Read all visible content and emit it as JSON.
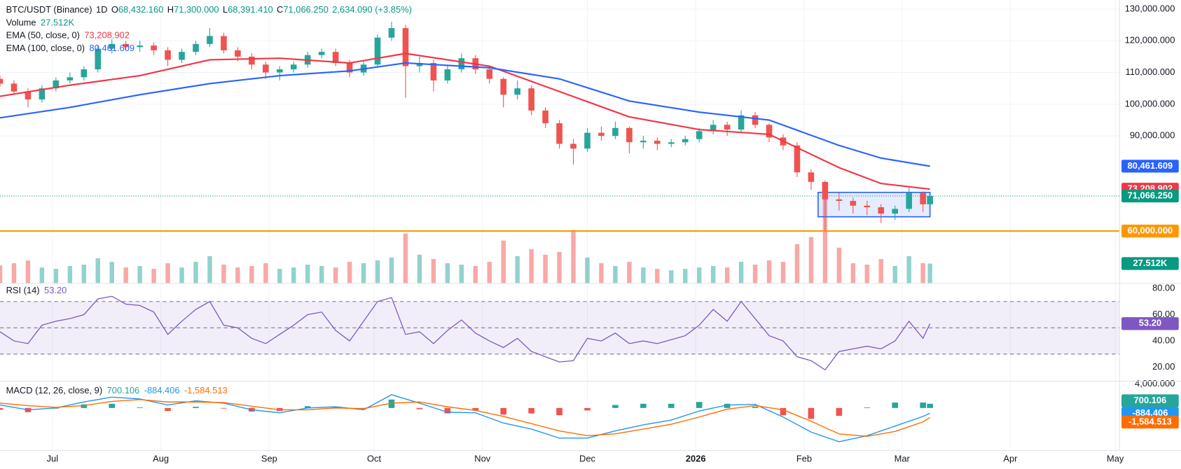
{
  "chart_data": [
    {
      "type": "candlestick",
      "title": "BTC/USDT (Binance)",
      "timeframe": "1D",
      "ohlc_legend": [
        {
          "label": "O",
          "value": "68,432.160"
        },
        {
          "label": "H",
          "value": "71,300.000"
        },
        {
          "label": "L",
          "value": "68,391.410"
        },
        {
          "label": "C",
          "value": "71,066.250"
        }
      ],
      "change": "2,634.090 (+3.85%)",
      "up_color": "#26a69a",
      "down_color": "#ef5350",
      "xlim": [
        0,
        337.8
      ],
      "xticks": [
        {
          "value": 15,
          "label": "Jul"
        },
        {
          "value": 46,
          "label": "Aug"
        },
        {
          "value": 77,
          "label": "Sep"
        },
        {
          "value": 107,
          "label": "Oct"
        },
        {
          "value": 138,
          "label": "Nov"
        },
        {
          "value": 168,
          "label": "Dec"
        },
        {
          "value": 199,
          "label": "2026"
        },
        {
          "value": 230,
          "label": "Feb"
        },
        {
          "value": 258,
          "label": "Mar"
        },
        {
          "value": 289,
          "label": "Apr"
        },
        {
          "value": 319,
          "label": "May"
        }
      ],
      "ylim": [
        43600,
        132850
      ],
      "yticks": [
        {
          "value": 90000,
          "label": "90,000.000"
        },
        {
          "value": 100000,
          "label": "100,000.000"
        },
        {
          "value": 110000,
          "label": "110,000.000"
        },
        {
          "value": 120000,
          "label": "120,000.000"
        },
        {
          "value": 130000,
          "label": "130,000.000"
        }
      ],
      "grid": true,
      "x": [
        0,
        4,
        8,
        12,
        16,
        20,
        24,
        28,
        32,
        36,
        40,
        44,
        48,
        52,
        56,
        60,
        64,
        68,
        72,
        76,
        80,
        84,
        88,
        92,
        96,
        100,
        104,
        108,
        112,
        116,
        120,
        124,
        128,
        132,
        136,
        140,
        144,
        148,
        152,
        156,
        160,
        164,
        168,
        172,
        176,
        180,
        184,
        188,
        192,
        196,
        200,
        204,
        208,
        212,
        216,
        220,
        224,
        228,
        232,
        236,
        240,
        244,
        248,
        252,
        256,
        260,
        264,
        266
      ],
      "open": [
        108000,
        106500,
        104000,
        101500,
        105000,
        107500,
        108500,
        111000,
        117500,
        119000,
        118000,
        118500,
        117000,
        114000,
        116500,
        119000,
        121500,
        117000,
        115000,
        112500,
        110000,
        111000,
        112500,
        115500,
        116500,
        113000,
        110000,
        112500,
        121000,
        124000,
        112000,
        113000,
        107500,
        111000,
        114500,
        111000,
        108000,
        103000,
        105000,
        98000,
        94000,
        87500,
        86000,
        91000,
        90000,
        92500,
        88000,
        88500,
        87500,
        88000,
        89000,
        91500,
        93500,
        92000,
        96500,
        93500,
        89500,
        87000,
        78500,
        75500,
        70000,
        69500,
        68000,
        67500,
        65500,
        67000,
        72000,
        68432.16
      ],
      "high": [
        109000,
        107500,
        105000,
        106000,
        108500,
        110000,
        112000,
        118500,
        120500,
        120000,
        120000,
        119500,
        118000,
        117500,
        120000,
        124000,
        122500,
        118000,
        116000,
        113500,
        112000,
        113500,
        116500,
        117500,
        117500,
        114000,
        113500,
        122000,
        126000,
        125000,
        115000,
        114000,
        112500,
        116000,
        115500,
        112000,
        108500,
        107500,
        106000,
        99000,
        95000,
        89000,
        92500,
        93000,
        94500,
        93000,
        90000,
        89500,
        89000,
        90000,
        92500,
        95000,
        94500,
        98000,
        97500,
        94000,
        90500,
        88000,
        79500,
        76000,
        72000,
        70500,
        69500,
        68500,
        68000,
        74000,
        72500,
        71300
      ],
      "low": [
        105500,
        103000,
        99000,
        100500,
        104000,
        106500,
        107500,
        110000,
        116000,
        117000,
        116500,
        115500,
        112000,
        113000,
        115500,
        118000,
        116000,
        113500,
        111000,
        108000,
        107500,
        110000,
        111500,
        114500,
        112000,
        108500,
        109000,
        111500,
        120000,
        102000,
        110000,
        104000,
        106500,
        110000,
        109500,
        106500,
        99000,
        101500,
        96500,
        92500,
        86000,
        81000,
        85000,
        88500,
        89000,
        84500,
        86000,
        85500,
        86500,
        87000,
        88000,
        90500,
        90000,
        91000,
        92500,
        88000,
        85500,
        77000,
        73000,
        60000,
        66500,
        65500,
        65000,
        62500,
        63500,
        66000,
        66000,
        68391.41
      ],
      "close": [
        106500,
        104000,
        101500,
        105000,
        107500,
        108500,
        111000,
        117500,
        119000,
        118000,
        118500,
        117000,
        114000,
        116500,
        119000,
        121500,
        117000,
        115000,
        112500,
        110000,
        111000,
        112500,
        115500,
        116500,
        113000,
        110000,
        112500,
        121000,
        124000,
        112000,
        113000,
        107500,
        111000,
        114500,
        111000,
        108000,
        103000,
        105000,
        98000,
        94000,
        87500,
        86000,
        91000,
        90000,
        92500,
        88000,
        88500,
        87500,
        88000,
        89000,
        91500,
        93500,
        92000,
        96500,
        93500,
        89500,
        87000,
        78500,
        75500,
        70000,
        69500,
        68000,
        67500,
        65500,
        67000,
        72000,
        68432.16,
        71066.25
      ],
      "volume": {
        "name": "Volume",
        "ylim": [
          0,
          400
        ],
        "values": [
          25,
          28,
          32,
          22,
          20,
          24,
          26,
          35,
          30,
          22,
          24,
          20,
          28,
          22,
          30,
          38,
          26,
          22,
          24,
          28,
          20,
          22,
          26,
          24,
          22,
          30,
          28,
          32,
          36,
          70,
          40,
          34,
          28,
          26,
          24,
          30,
          60,
          38,
          48,
          40,
          44,
          75,
          36,
          28,
          24,
          30,
          22,
          20,
          18,
          20,
          22,
          24,
          22,
          30,
          26,
          32,
          30,
          55,
          65,
          130,
          50,
          28,
          26,
          34,
          24,
          38,
          28,
          27.512
        ],
        "tag": {
          "value": 27.512,
          "label": "27.512K"
        },
        "color": "#26a69a"
      },
      "ema": [
        {
          "name": "EMA (50, close, 0)",
          "color": "#f23645",
          "x": [
            0,
            20,
            40,
            60,
            80,
            100,
            116,
            140,
            160,
            180,
            200,
            220,
            240,
            252,
            266
          ],
          "values": [
            102500,
            106000,
            109000,
            114000,
            114500,
            113000,
            116000,
            112000,
            104000,
            96000,
            92000,
            90500,
            80000,
            75000,
            73208.902
          ],
          "tag": {
            "value": 73208.902,
            "label": "73,208.902"
          }
        },
        {
          "name": "EMA (100, close, 0)",
          "color": "#2962ff",
          "x": [
            0,
            20,
            40,
            60,
            80,
            100,
            116,
            140,
            160,
            180,
            200,
            220,
            240,
            252,
            266
          ],
          "values": [
            95700,
            99000,
            103000,
            106500,
            109000,
            110500,
            113000,
            111500,
            108000,
            101000,
            97500,
            95000,
            87000,
            83000,
            80461.609
          ],
          "tag": {
            "value": 80461.609,
            "label": "80,461.609"
          }
        }
      ],
      "last_price": {
        "value": 71066.25,
        "label": "71,066.250",
        "color": "#089981"
      },
      "hline": {
        "value": 60000,
        "label": "60,000.000",
        "color": "#ff9800"
      },
      "range_box": {
        "x": [
          234,
          266
        ],
        "y": [
          64500,
          72200
        ],
        "color": "#2962ff"
      }
    },
    {
      "type": "line",
      "title": "RSI (14)",
      "color": "#7e57c2",
      "x": [
        0,
        4,
        8,
        12,
        16,
        20,
        24,
        28,
        32,
        36,
        40,
        44,
        48,
        52,
        56,
        60,
        64,
        68,
        72,
        76,
        80,
        84,
        88,
        92,
        96,
        100,
        104,
        108,
        112,
        116,
        120,
        124,
        128,
        132,
        136,
        140,
        144,
        148,
        152,
        156,
        160,
        164,
        168,
        172,
        176,
        180,
        184,
        188,
        192,
        196,
        200,
        204,
        208,
        212,
        216,
        220,
        224,
        228,
        232,
        236,
        240,
        244,
        248,
        252,
        256,
        260,
        264,
        266
      ],
      "values": [
        47,
        40,
        38,
        52,
        55,
        57,
        60,
        72,
        74,
        68,
        67,
        62,
        45,
        55,
        64,
        70,
        52,
        50,
        42,
        38,
        45,
        52,
        60,
        62,
        48,
        40,
        55,
        70,
        73,
        45,
        47,
        38,
        48,
        56,
        46,
        40,
        35,
        42,
        32,
        28,
        24,
        25,
        42,
        40,
        46,
        38,
        40,
        38,
        41,
        44,
        52,
        64,
        55,
        70,
        57,
        44,
        40,
        28,
        25,
        18,
        32,
        34,
        36,
        34,
        40,
        55,
        42,
        53.2
      ],
      "tag": {
        "value": 53.2,
        "label": "53.20"
      },
      "ylim": [
        9.6,
        83.5
      ],
      "yticks": [
        {
          "value": 20,
          "label": "20.00"
        },
        {
          "value": 40,
          "label": "40.00"
        },
        {
          "value": 60,
          "label": "60.00"
        },
        {
          "value": 80,
          "label": "80.00"
        }
      ],
      "levels": [
        30,
        50,
        70
      ]
    },
    {
      "type": "macd",
      "title": "MACD (12, 26, close, 9)",
      "x": [
        0,
        8,
        16,
        24,
        32,
        40,
        48,
        56,
        64,
        72,
        80,
        88,
        96,
        104,
        112,
        120,
        128,
        136,
        144,
        152,
        160,
        168,
        176,
        184,
        192,
        200,
        208,
        216,
        224,
        232,
        240,
        248,
        256,
        264,
        266
      ],
      "histogram": {
        "up_color": "#26a69a",
        "down_color": "#ef5350",
        "values": [
          -300,
          -700,
          -100,
          600,
          700,
          100,
          -500,
          200,
          -100,
          -600,
          -500,
          300,
          200,
          -200,
          1400,
          -200,
          -900,
          -400,
          -1100,
          -900,
          -1200,
          -400,
          500,
          700,
          700,
          1000,
          700,
          200,
          -1200,
          -1800,
          -1300,
          100,
          900,
          900,
          700.106
        ],
        "tag": {
          "value": 700.106,
          "label": "700.106"
        }
      },
      "macd": {
        "color": "#2196f3",
        "values": [
          500,
          -300,
          0,
          1000,
          1800,
          1500,
          500,
          1200,
          800,
          -300,
          -800,
          0,
          200,
          -300,
          2200,
          800,
          -700,
          -800,
          -2500,
          -3500,
          -5000,
          -5000,
          -3800,
          -2800,
          -2000,
          -500,
          500,
          600,
          -1500,
          -4000,
          -5600,
          -4600,
          -3000,
          -1400,
          -884.406
        ],
        "tag": {
          "value": -884.406,
          "label": "-884.406"
        }
      },
      "signal": {
        "color": "#ff6d00",
        "values": [
          800,
          400,
          100,
          400,
          1100,
          1400,
          1000,
          1000,
          900,
          300,
          -300,
          -300,
          0,
          -100,
          800,
          1000,
          200,
          -400,
          -1400,
          -2600,
          -3800,
          -4600,
          -4300,
          -3500,
          -2700,
          -1500,
          -200,
          400,
          -300,
          -2200,
          -4300,
          -4700,
          -3900,
          -2300,
          -1584.513
        ],
        "tag": {
          "value": -1584.513,
          "label": "-1,584.513"
        }
      },
      "ylim": [
        -7000,
        4375
      ],
      "yticks": [
        {
          "value": 4000,
          "label": "4,000.000"
        }
      ]
    }
  ]
}
